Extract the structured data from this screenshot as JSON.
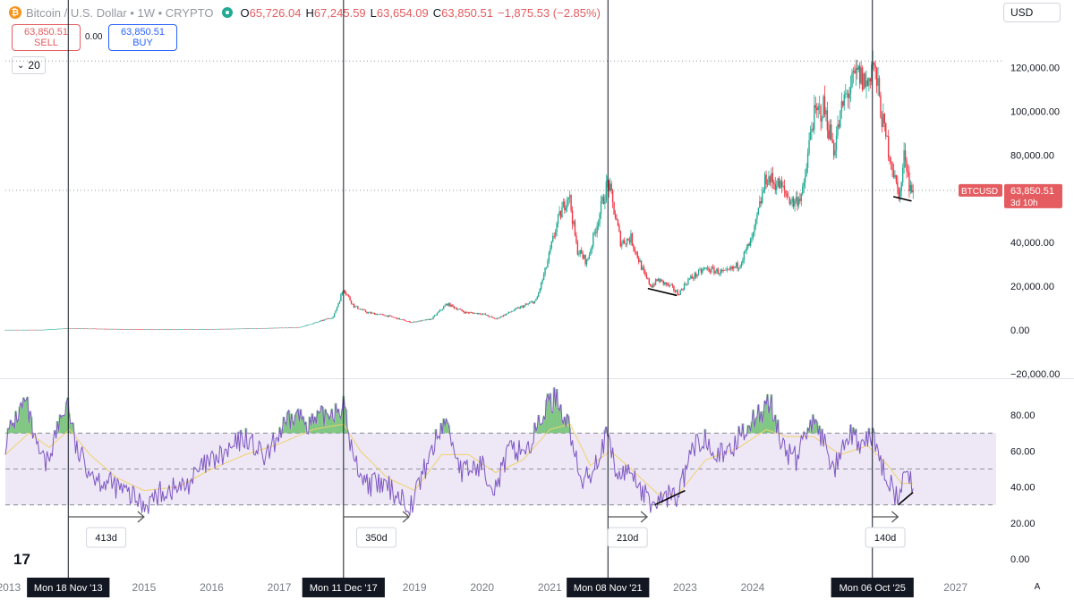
{
  "header": {
    "symbol_title": "Bitcoin / U.S. Dollar",
    "interval": "1W",
    "exchange": "CRYPTO",
    "open_label": "O",
    "open": "65,726.04",
    "high_label": "H",
    "high": "67,245.59",
    "low_label": "L",
    "low": "63,654.09",
    "close_label": "C",
    "close": "63,850.51",
    "change": "−1,875.53 (−2.85%)"
  },
  "trade": {
    "sell_price": "63,850.51",
    "sell_label": "SELL",
    "buy_price": "63,850.51",
    "buy_label": "BUY",
    "spread": "0.00"
  },
  "indicator_period": "20",
  "currency": "USD",
  "price_tag": {
    "symbol": "BTCUSD",
    "price": "63,850.51",
    "countdown": "3d 10h"
  },
  "logo": "17",
  "auto_button": "A",
  "colors": {
    "up": "#22ab94",
    "down": "#f23645",
    "rsi": "#7e57c2",
    "rsi_ma": "#f1d36b",
    "band": "#ede7f6",
    "price_tag": "#e45c60",
    "sell": "#e45c60",
    "buy": "#2962ff"
  },
  "chart_data": [
    {
      "type": "candlestick",
      "title": "Bitcoin / U.S. Dollar · 1W · CRYPTO",
      "y_axis_labels": [
        "120,000.00",
        "100,000.00",
        "80,000.00",
        "60,000.00",
        "40,000.00",
        "20,000.00",
        "0.00",
        "−20,000.00"
      ],
      "ylim": [
        -20000,
        128000
      ],
      "x_axis_labels": [
        "2013",
        "2015",
        "2016",
        "2017",
        "2019",
        "2020",
        "2021",
        "2023",
        "2024",
        "2027"
      ],
      "xlim": [
        2012.95,
        2027.6
      ],
      "last_price": 63850.51,
      "price_path": [
        [
          2012.95,
          80
        ],
        [
          2013.5,
          100
        ],
        [
          2013.88,
          800
        ],
        [
          2014.5,
          500
        ],
        [
          2015.0,
          250
        ],
        [
          2015.5,
          260
        ],
        [
          2016.0,
          420
        ],
        [
          2016.5,
          650
        ],
        [
          2017.0,
          1000
        ],
        [
          2017.3,
          1200
        ],
        [
          2017.6,
          4000
        ],
        [
          2017.8,
          6000
        ],
        [
          2017.95,
          19000
        ],
        [
          2018.1,
          11000
        ],
        [
          2018.3,
          8000
        ],
        [
          2018.6,
          6500
        ],
        [
          2018.95,
          3500
        ],
        [
          2019.25,
          5000
        ],
        [
          2019.48,
          12000
        ],
        [
          2019.75,
          8000
        ],
        [
          2020.0,
          7500
        ],
        [
          2020.2,
          5000
        ],
        [
          2020.5,
          9500
        ],
        [
          2020.8,
          13500
        ],
        [
          2020.95,
          29000
        ],
        [
          2021.1,
          48000
        ],
        [
          2021.28,
          63000
        ],
        [
          2021.4,
          37000
        ],
        [
          2021.55,
          31000
        ],
        [
          2021.75,
          55000
        ],
        [
          2021.86,
          68000
        ],
        [
          2022.05,
          40000
        ],
        [
          2022.2,
          42000
        ],
        [
          2022.4,
          25000
        ],
        [
          2022.5,
          20000
        ],
        [
          2022.6,
          23000
        ],
        [
          2022.8,
          19500
        ],
        [
          2022.9,
          16500
        ],
        [
          2023.05,
          23000
        ],
        [
          2023.3,
          28000
        ],
        [
          2023.6,
          26000
        ],
        [
          2023.8,
          30000
        ],
        [
          2024.0,
          42000
        ],
        [
          2024.2,
          70000
        ],
        [
          2024.4,
          66000
        ],
        [
          2024.6,
          58000
        ],
        [
          2024.75,
          63000
        ],
        [
          2024.88,
          96000
        ],
        [
          2025.05,
          102000
        ],
        [
          2025.2,
          83000
        ],
        [
          2025.35,
          105000
        ],
        [
          2025.55,
          117000
        ],
        [
          2025.7,
          112000
        ],
        [
          2025.77,
          124000
        ],
        [
          2025.85,
          110000
        ],
        [
          2025.95,
          90000
        ],
        [
          2026.05,
          78000
        ],
        [
          2026.12,
          66000
        ],
        [
          2026.18,
          62000
        ],
        [
          2026.25,
          82000
        ],
        [
          2026.32,
          66000
        ],
        [
          2026.37,
          63850
        ]
      ],
      "divergence_lines": [
        {
          "x": [
            2022.45,
            2022.88
          ],
          "y": [
            19000,
            15800
          ]
        },
        {
          "x": [
            2026.08,
            2026.35
          ],
          "y": [
            61000,
            59000
          ]
        }
      ]
    },
    {
      "type": "line",
      "title": "RSI",
      "y_axis_labels": [
        "80.00",
        "60.00",
        "40.00",
        "20.00",
        "0.00"
      ],
      "ylim": [
        0,
        100
      ],
      "levels": [
        70,
        50,
        30
      ],
      "series": [
        {
          "values": [
            [
              2012.95,
              65
            ],
            [
              2013.1,
              78
            ],
            [
              2013.25,
              88
            ],
            [
              2013.4,
              62
            ],
            [
              2013.55,
              52
            ],
            [
              2013.7,
              70
            ],
            [
              2013.87,
              88
            ],
            [
              2014.0,
              60
            ],
            [
              2014.3,
              45
            ],
            [
              2014.6,
              40
            ],
            [
              2014.8,
              35
            ],
            [
              2015.0,
              30
            ],
            [
              2015.3,
              38
            ],
            [
              2015.6,
              40
            ],
            [
              2015.9,
              52
            ],
            [
              2016.2,
              58
            ],
            [
              2016.5,
              68
            ],
            [
              2016.8,
              55
            ],
            [
              2017.0,
              70
            ],
            [
              2017.25,
              80
            ],
            [
              2017.5,
              75
            ],
            [
              2017.75,
              82
            ],
            [
              2017.95,
              85
            ],
            [
              2018.1,
              55
            ],
            [
              2018.3,
              42
            ],
            [
              2018.6,
              40
            ],
            [
              2018.95,
              30
            ],
            [
              2019.2,
              55
            ],
            [
              2019.45,
              78
            ],
            [
              2019.7,
              48
            ],
            [
              2020.0,
              52
            ],
            [
              2020.2,
              40
            ],
            [
              2020.4,
              60
            ],
            [
              2020.7,
              62
            ],
            [
              2020.95,
              85
            ],
            [
              2021.1,
              90
            ],
            [
              2021.3,
              72
            ],
            [
              2021.45,
              42
            ],
            [
              2021.6,
              48
            ],
            [
              2021.85,
              68
            ],
            [
              2022.0,
              45
            ],
            [
              2022.2,
              50
            ],
            [
              2022.4,
              35
            ],
            [
              2022.55,
              30
            ],
            [
              2022.7,
              35
            ],
            [
              2022.9,
              35
            ],
            [
              2023.1,
              60
            ],
            [
              2023.3,
              68
            ],
            [
              2023.6,
              55
            ],
            [
              2023.85,
              72
            ],
            [
              2024.1,
              80
            ],
            [
              2024.25,
              88
            ],
            [
              2024.45,
              62
            ],
            [
              2024.65,
              55
            ],
            [
              2024.85,
              78
            ],
            [
              2025.05,
              65
            ],
            [
              2025.2,
              50
            ],
            [
              2025.45,
              68
            ],
            [
              2025.65,
              62
            ],
            [
              2025.77,
              70
            ],
            [
              2025.9,
              52
            ],
            [
              2026.05,
              42
            ],
            [
              2026.15,
              32
            ],
            [
              2026.27,
              48
            ],
            [
              2026.37,
              40
            ]
          ]
        },
        {
          "values": [
            [
              2012.95,
              58
            ],
            [
              2013.3,
              70
            ],
            [
              2013.6,
              62
            ],
            [
              2013.9,
              72
            ],
            [
              2014.2,
              58
            ],
            [
              2014.6,
              45
            ],
            [
              2015.0,
              38
            ],
            [
              2015.5,
              40
            ],
            [
              2016.0,
              50
            ],
            [
              2016.5,
              58
            ],
            [
              2017.0,
              64
            ],
            [
              2017.5,
              72
            ],
            [
              2017.95,
              75
            ],
            [
              2018.2,
              60
            ],
            [
              2018.6,
              45
            ],
            [
              2019.0,
              38
            ],
            [
              2019.4,
              58
            ],
            [
              2019.8,
              58
            ],
            [
              2020.2,
              48
            ],
            [
              2020.6,
              55
            ],
            [
              2021.0,
              72
            ],
            [
              2021.3,
              75
            ],
            [
              2021.6,
              52
            ],
            [
              2021.9,
              60
            ],
            [
              2022.2,
              50
            ],
            [
              2022.6,
              36
            ],
            [
              2022.9,
              36
            ],
            [
              2023.3,
              55
            ],
            [
              2023.8,
              62
            ],
            [
              2024.2,
              72
            ],
            [
              2024.5,
              68
            ],
            [
              2024.9,
              68
            ],
            [
              2025.3,
              58
            ],
            [
              2025.7,
              63
            ],
            [
              2026.0,
              52
            ],
            [
              2026.2,
              42
            ],
            [
              2026.37,
              42
            ]
          ]
        }
      ],
      "divergence_lines": [
        {
          "x": [
            2022.55,
            2023.0
          ],
          "y": [
            30,
            38
          ]
        },
        {
          "x": [
            2026.15,
            2026.37
          ],
          "y": [
            30,
            37
          ]
        }
      ]
    }
  ],
  "vertical_markers": [
    {
      "x": 2013.88,
      "date_label": "Mon 18 Nov '13",
      "duration": "413d",
      "span_to": 2015.0
    },
    {
      "x": 2017.95,
      "date_label": "Mon 11 Dec '17",
      "duration": "350d",
      "span_to": 2018.92
    },
    {
      "x": 2021.86,
      "date_label": "Mon 08 Nov '21",
      "duration": "210d",
      "span_to": 2022.44
    },
    {
      "x": 2025.77,
      "date_label": "Mon 06 Oct '25",
      "duration": "140d",
      "span_to": 2026.15
    }
  ]
}
